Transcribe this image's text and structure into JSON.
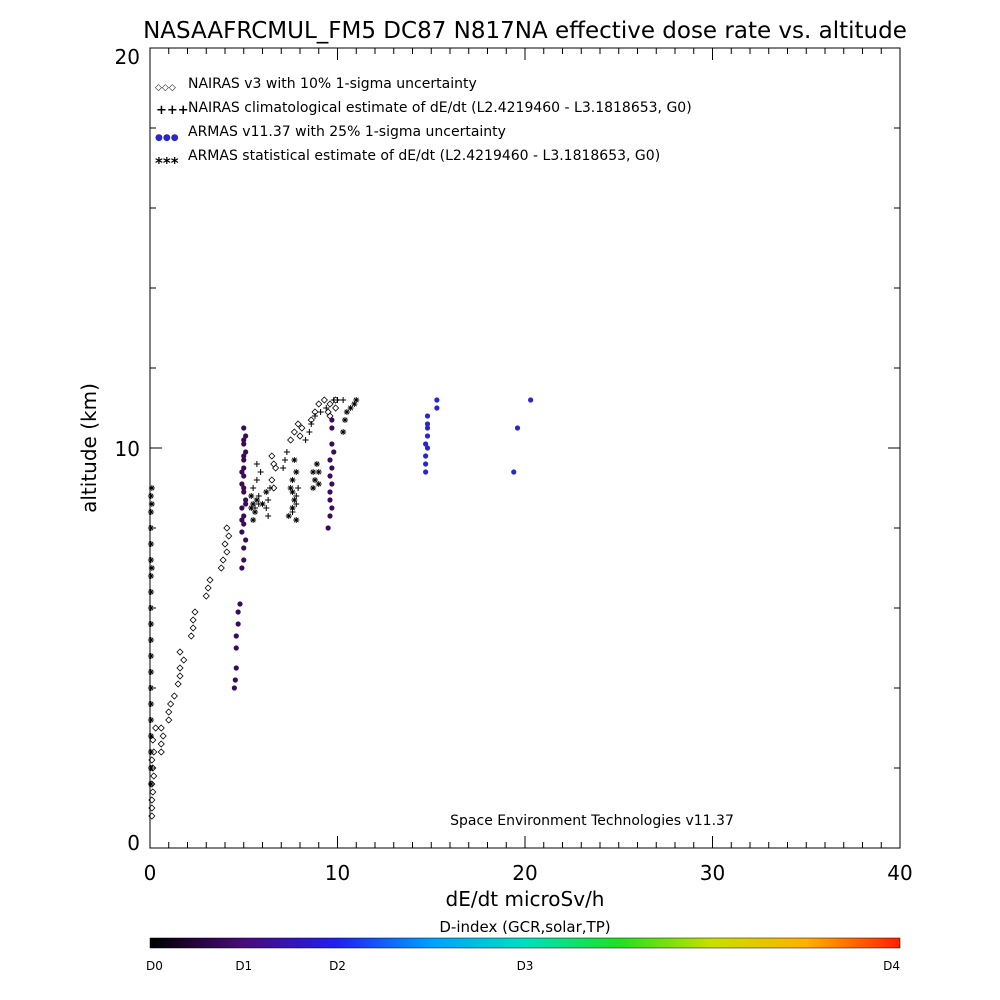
{
  "chart_data": {
    "type": "scatter",
    "title": "NASAAFRCMUL_FM5 DC87 N817NA effective dose rate vs. altitude",
    "xlabel": "dE/dt microSv/h",
    "ylabel": "altitude (km)",
    "xlim": [
      0,
      40
    ],
    "ylim": [
      0,
      20
    ],
    "x_ticks": [
      "0",
      "10",
      "20",
      "30",
      "40"
    ],
    "y_ticks": [
      "0",
      "10",
      "20"
    ],
    "grid": false,
    "legend_position": "top-left",
    "legend": [
      {
        "symbol": "◇◇◇",
        "label": "NAIRAS v3 with 10% 1-sigma uncertainty"
      },
      {
        "symbol": "+++",
        "label": "NAIRAS climatological estimate of dE/dt (L2.4219460 - L3.1818653, G0)"
      },
      {
        "symbol": "●●●",
        "label": "ARMAS v11.37 with 25% 1-sigma uncertainty"
      },
      {
        "symbol": "***",
        "label": "ARMAS statistical estimate of dE/dt (L2.4219460 - L3.1818653, G0)"
      }
    ],
    "annotation": "Space Environment Technologies v11.37",
    "colorbar": {
      "title": "D-index (GCR,solar,TP)",
      "tick_labels": [
        "D0",
        "D1",
        "D2",
        "D3",
        "D4"
      ],
      "tick_positions": [
        0,
        0.125,
        0.25,
        0.5,
        1.0
      ]
    },
    "series": [
      {
        "marker": "diamond",
        "color": "#000000",
        "points": [
          [
            0.1,
            0.8
          ],
          [
            0.1,
            1.0
          ],
          [
            0.1,
            1.2
          ],
          [
            0.15,
            1.4
          ],
          [
            0.1,
            1.6
          ],
          [
            0.2,
            1.8
          ],
          [
            0.15,
            2.0
          ],
          [
            0.1,
            2.2
          ],
          [
            0.2,
            2.4
          ],
          [
            0.15,
            2.7
          ],
          [
            0.3,
            3.0
          ],
          [
            0.6,
            2.4
          ],
          [
            0.6,
            2.6
          ],
          [
            0.7,
            2.8
          ],
          [
            0.6,
            3.0
          ],
          [
            1.0,
            3.2
          ],
          [
            1.0,
            3.4
          ],
          [
            1.1,
            3.6
          ],
          [
            1.3,
            3.8
          ],
          [
            1.5,
            4.1
          ],
          [
            1.6,
            4.3
          ],
          [
            1.6,
            4.5
          ],
          [
            1.8,
            4.7
          ],
          [
            1.6,
            4.9
          ],
          [
            2.2,
            5.3
          ],
          [
            2.3,
            5.5
          ],
          [
            2.3,
            5.7
          ],
          [
            2.4,
            5.9
          ],
          [
            3.0,
            6.3
          ],
          [
            3.1,
            6.5
          ],
          [
            3.2,
            6.7
          ],
          [
            3.8,
            7.0
          ],
          [
            3.9,
            7.2
          ],
          [
            4.1,
            7.4
          ],
          [
            4.0,
            7.6
          ],
          [
            4.2,
            7.8
          ],
          [
            4.1,
            8.0
          ],
          [
            6.5,
            9.8
          ],
          [
            6.6,
            9.6
          ],
          [
            6.7,
            9.5
          ],
          [
            6.5,
            9.2
          ],
          [
            6.6,
            9.0
          ],
          [
            7.5,
            10.2
          ],
          [
            7.7,
            10.4
          ],
          [
            7.9,
            10.6
          ],
          [
            8.0,
            10.3
          ],
          [
            8.1,
            10.5
          ],
          [
            8.8,
            10.9
          ],
          [
            8.6,
            10.7
          ],
          [
            9.0,
            11.1
          ],
          [
            9.3,
            11.2
          ],
          [
            9.6,
            11.1
          ],
          [
            9.5,
            10.9
          ],
          [
            9.6,
            10.8
          ],
          [
            9.9,
            11.2
          ],
          [
            9.9,
            11.0
          ]
        ]
      },
      {
        "marker": "plus",
        "color": "#000000",
        "points": [
          [
            5.6,
            8.5
          ],
          [
            5.8,
            8.6
          ],
          [
            5.8,
            8.8
          ],
          [
            5.5,
            9.0
          ],
          [
            5.7,
            9.2
          ],
          [
            5.9,
            9.4
          ],
          [
            5.7,
            9.6
          ],
          [
            6.3,
            8.3
          ],
          [
            6.2,
            8.5
          ],
          [
            6.3,
            8.7
          ],
          [
            6.4,
            9.0
          ],
          [
            7.1,
            9.5
          ],
          [
            7.2,
            9.7
          ],
          [
            7.3,
            9.9
          ],
          [
            7.6,
            8.4
          ],
          [
            7.8,
            8.6
          ],
          [
            7.8,
            8.8
          ],
          [
            7.9,
            9.0
          ],
          [
            8.3,
            10.2
          ],
          [
            8.5,
            10.4
          ],
          [
            8.6,
            10.6
          ],
          [
            8.8,
            10.8
          ],
          [
            9.1,
            10.9
          ],
          [
            9.4,
            11.0
          ],
          [
            9.8,
            11.2
          ],
          [
            10.0,
            11.2
          ],
          [
            10.3,
            11.2
          ]
        ]
      },
      {
        "marker": "dot",
        "color": "#3c0a5a",
        "points": [
          [
            4.5,
            4.0
          ],
          [
            4.55,
            4.2
          ],
          [
            4.6,
            4.5
          ],
          [
            4.6,
            5.0
          ],
          [
            4.6,
            5.3
          ],
          [
            4.7,
            5.6
          ],
          [
            4.7,
            5.9
          ],
          [
            4.8,
            6.1
          ],
          [
            4.9,
            7.0
          ],
          [
            5.0,
            7.2
          ],
          [
            5.0,
            7.5
          ],
          [
            5.1,
            7.7
          ],
          [
            4.9,
            7.9
          ],
          [
            5.0,
            8.1
          ],
          [
            5.0,
            8.3
          ],
          [
            4.9,
            8.5
          ],
          [
            5.1,
            8.7
          ],
          [
            5.0,
            8.9
          ],
          [
            4.9,
            9.1
          ],
          [
            5.0,
            9.3
          ],
          [
            5.0,
            9.5
          ],
          [
            5.0,
            9.7
          ],
          [
            5.1,
            9.9
          ],
          [
            5.0,
            10.1
          ],
          [
            5.1,
            10.3
          ],
          [
            5.0,
            10.5
          ],
          [
            4.9,
            8.2
          ],
          [
            5.1,
            8.6
          ],
          [
            5.0,
            9.0
          ],
          [
            4.9,
            9.4
          ],
          [
            5.0,
            9.8
          ],
          [
            5.0,
            10.2
          ],
          [
            9.5,
            8.0
          ],
          [
            9.6,
            8.3
          ],
          [
            9.7,
            8.5
          ],
          [
            9.6,
            8.7
          ],
          [
            9.6,
            8.9
          ],
          [
            9.7,
            9.1
          ],
          [
            9.6,
            9.3
          ],
          [
            9.7,
            9.5
          ],
          [
            9.6,
            9.7
          ],
          [
            9.8,
            9.9
          ],
          [
            9.7,
            10.1
          ],
          [
            9.7,
            10.5
          ],
          [
            9.7,
            10.7
          ]
        ]
      },
      {
        "marker": "dot",
        "color": "#2828c8",
        "points": [
          [
            14.7,
            9.4
          ],
          [
            14.7,
            9.6
          ],
          [
            14.7,
            9.8
          ],
          [
            14.8,
            10.0
          ],
          [
            14.7,
            10.1
          ],
          [
            14.8,
            10.3
          ],
          [
            14.8,
            10.5
          ],
          [
            14.8,
            10.6
          ],
          [
            14.8,
            10.8
          ],
          [
            15.3,
            11.0
          ],
          [
            15.3,
            11.2
          ],
          [
            19.4,
            9.4
          ],
          [
            19.6,
            10.5
          ],
          [
            20.3,
            11.2
          ]
        ]
      },
      {
        "marker": "asterisk",
        "color": "#000000",
        "points": [
          [
            0.05,
            1.6
          ],
          [
            0.05,
            2.0
          ],
          [
            0.05,
            2.4
          ],
          [
            0.05,
            2.8
          ],
          [
            0.05,
            3.2
          ],
          [
            0.05,
            3.6
          ],
          [
            0.05,
            4.0
          ],
          [
            0.05,
            4.4
          ],
          [
            0.05,
            4.8
          ],
          [
            0.05,
            5.2
          ],
          [
            0.05,
            5.6
          ],
          [
            0.05,
            6.0
          ],
          [
            0.05,
            6.4
          ],
          [
            0.05,
            6.8
          ],
          [
            0.05,
            7.2
          ],
          [
            0.05,
            7.6
          ],
          [
            0.05,
            8.0
          ],
          [
            0.05,
            8.4
          ],
          [
            0.05,
            8.8
          ],
          [
            0.1,
            9.0
          ],
          [
            0.1,
            8.6
          ],
          [
            0.1,
            7.0
          ],
          [
            5.4,
            8.5
          ],
          [
            5.5,
            8.6
          ],
          [
            5.4,
            8.8
          ],
          [
            5.6,
            8.4
          ],
          [
            5.7,
            8.7
          ],
          [
            5.5,
            8.2
          ],
          [
            6.0,
            8.6
          ],
          [
            6.2,
            8.9
          ],
          [
            7.4,
            8.3
          ],
          [
            7.6,
            8.5
          ],
          [
            7.7,
            8.7
          ],
          [
            7.6,
            8.9
          ],
          [
            7.8,
            8.2
          ],
          [
            7.5,
            9.0
          ],
          [
            7.8,
            9.4
          ],
          [
            7.7,
            9.7
          ],
          [
            7.6,
            9.2
          ],
          [
            8.7,
            9.0
          ],
          [
            8.8,
            9.2
          ],
          [
            9.0,
            9.4
          ],
          [
            8.9,
            9.6
          ],
          [
            8.7,
            9.4
          ],
          [
            9.0,
            9.1
          ],
          [
            10.3,
            10.4
          ],
          [
            10.4,
            10.7
          ],
          [
            10.5,
            10.9
          ],
          [
            10.7,
            11.0
          ],
          [
            10.9,
            11.1
          ],
          [
            11.0,
            11.2
          ]
        ]
      }
    ]
  }
}
